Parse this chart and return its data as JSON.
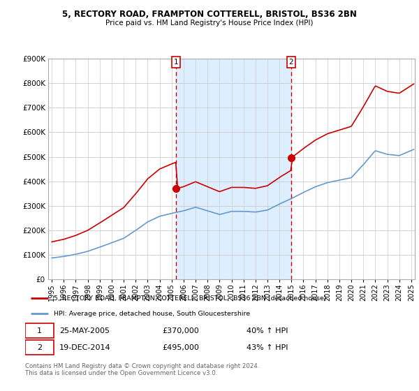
{
  "title": "5, RECTORY ROAD, FRAMPTON COTTERELL, BRISTOL, BS36 2BN",
  "subtitle": "Price paid vs. HM Land Registry's House Price Index (HPI)",
  "ylim": [
    0,
    900000
  ],
  "yticks": [
    0,
    100000,
    200000,
    300000,
    400000,
    500000,
    600000,
    700000,
    800000,
    900000
  ],
  "ytick_labels": [
    "£0",
    "£100K",
    "£200K",
    "£300K",
    "£400K",
    "£500K",
    "£600K",
    "£700K",
    "£800K",
    "£900K"
  ],
  "xlim_start": 1994.7,
  "xlim_end": 2025.3,
  "property_color": "#cc0000",
  "hpi_color": "#6699cc",
  "shade_color": "#ddeeff",
  "purchase1_x": 2005.38,
  "purchase1_y": 370000,
  "purchase2_x": 2014.96,
  "purchase2_y": 495000,
  "legend_line1": "5, RECTORY ROAD, FRAMPTON COTTERELL, BRISTOL,  BS36 2BN (detached house)",
  "legend_line2": "HPI: Average price, detached house, South Gloucestershire",
  "annotation1_date": "25-MAY-2005",
  "annotation1_price": "£370,000",
  "annotation1_hpi": "40% ↑ HPI",
  "annotation2_date": "19-DEC-2014",
  "annotation2_price": "£495,000",
  "annotation2_hpi": "43% ↑ HPI",
  "footer": "Contains HM Land Registry data © Crown copyright and database right 2024.\nThis data is licensed under the Open Government Licence v3.0.",
  "background_color": "#ffffff",
  "grid_color": "#cccccc"
}
